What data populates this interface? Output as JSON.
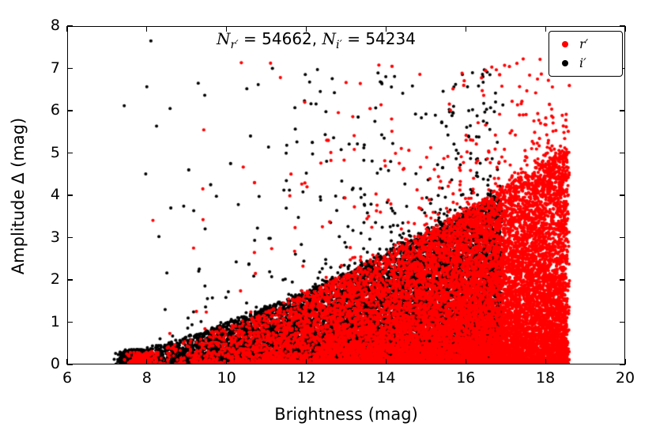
{
  "chart_data": {
    "type": "scatter",
    "title": "",
    "xlabel": "Brightness (mag)",
    "ylabel": "Amplitude Δ (mag)",
    "xlim": [
      6,
      20
    ],
    "ylim": [
      0,
      8
    ],
    "x_ticks": [
      6,
      8,
      10,
      12,
      14,
      16,
      18,
      20
    ],
    "y_ticks": [
      0,
      1,
      2,
      3,
      4,
      5,
      6,
      7,
      8
    ],
    "grid": false,
    "annotation": {
      "text": "N_r′ = 54662, N_i′ = 54234",
      "n_var_r": "N",
      "sub_r": "r′",
      "eq_r": " = 54662,",
      "n_var_i": " N",
      "sub_i": "i′",
      "eq_i": " = 54234"
    },
    "counts": {
      "n_r": 54662,
      "n_i": 54234
    },
    "legend": {
      "position": "upper right",
      "items": [
        {
          "label": "r′",
          "color": "#ff0000"
        },
        {
          "label": "i′",
          "color": "#000000"
        }
      ]
    },
    "series": [
      {
        "id": "i",
        "name": "i′",
        "color": "#000000",
        "n_label": 54234,
        "z": 0,
        "seed": 3,
        "render_count": 14000,
        "x_min": 7.1,
        "x_max": 16.9,
        "x_pow": 0.5,
        "env_base": 0.25,
        "env_scale": 3.8,
        "env_pow": 1.35,
        "y_pow": 1.7,
        "outlier_frac": 0.03,
        "tail_max": 7.0,
        "tail_pow": 2.6,
        "blob_frac": 0.05,
        "blob_x": 7.7,
        "blob_sx": 0.28,
        "blob_y": 0.35,
        "marker_r": 2.0,
        "outliers": [
          [
            8.1,
            7.65
          ],
          [
            11.15,
            7.0
          ],
          [
            10.6,
            5.4
          ],
          [
            9.05,
            4.6
          ],
          [
            13.3,
            5.85
          ],
          [
            12.15,
            5.25
          ],
          [
            9.6,
            4.25
          ],
          [
            8.6,
            3.7
          ],
          [
            10.1,
            4.75
          ]
        ]
      },
      {
        "id": "r",
        "name": "r′",
        "color": "#ff0000",
        "n_label": 54662,
        "z": 1,
        "seed": 7,
        "render_count": 14000,
        "x_min": 7.4,
        "x_max": 18.55,
        "x_pow": 0.36,
        "env_base": 0.2,
        "env_scale": 4.9,
        "env_pow": 1.35,
        "y_pow": 1.7,
        "outlier_frac": 0.022,
        "tail_max": 7.25,
        "tail_pow": 2.4,
        "blob_frac": 0.012,
        "blob_x": 7.9,
        "blob_sx": 0.3,
        "blob_y": 0.3,
        "marker_r": 2.1,
        "outliers": [
          [
            14.15,
            7.05
          ],
          [
            16.5,
            6.95
          ],
          [
            15.95,
            6.6
          ],
          [
            18.1,
            6.15
          ],
          [
            13.6,
            6.05
          ],
          [
            17.35,
            5.9
          ],
          [
            12.55,
            5.3
          ],
          [
            10.7,
            4.3
          ],
          [
            16.85,
            6.85
          ]
        ]
      }
    ]
  }
}
